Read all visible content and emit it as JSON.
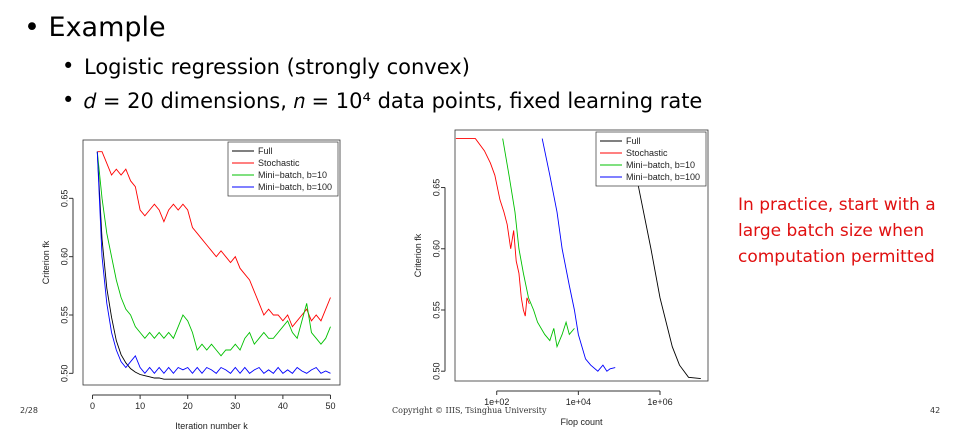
{
  "bullets": [
    "Example",
    "Logistic regression (strongly convex)",
    "𝑑 = 20 dimensions, 𝑛 = 10⁴ data points, fixed learning rate"
  ],
  "note": [
    "In practice, start with a",
    "large batch size when",
    "computation permitted"
  ],
  "footer": {
    "left": "2/28",
    "center": "Copyright © IIIS, Tsinghua University",
    "right": "42"
  },
  "chart_data": [
    {
      "type": "line",
      "xlabel": "Iteration number k",
      "ylabel": "Criterion fk",
      "x": [
        1,
        2,
        3,
        4,
        5,
        6,
        7,
        8,
        9,
        10,
        11,
        12,
        13,
        14,
        15,
        16,
        17,
        18,
        19,
        20,
        21,
        22,
        23,
        24,
        25,
        26,
        27,
        28,
        29,
        30,
        31,
        32,
        33,
        34,
        35,
        36,
        37,
        38,
        39,
        40,
        41,
        42,
        43,
        44,
        45,
        46,
        47,
        48,
        49,
        50
      ],
      "xlim": [
        -2,
        52
      ],
      "ylim": [
        0.49,
        0.7
      ],
      "xticks": [
        0,
        10,
        20,
        30,
        40,
        50
      ],
      "yticks": [
        {
          "value": 0.5,
          "label": "0.50"
        },
        0.55,
        {
          "value": 0.6,
          "label": "0.60"
        },
        0.65
      ],
      "legend": "topright",
      "series": [
        {
          "name": "Full",
          "color": "#000000",
          "values": [
            0.69,
            0.615,
            0.573,
            0.548,
            0.528,
            0.516,
            0.509,
            0.504,
            0.501,
            0.499,
            0.498,
            0.497,
            0.496,
            0.496,
            0.495,
            0.495,
            0.495,
            0.495,
            0.495,
            0.495,
            0.495,
            0.495,
            0.495,
            0.495,
            0.495,
            0.495,
            0.495,
            0.495,
            0.495,
            0.495,
            0.495,
            0.495,
            0.495,
            0.495,
            0.495,
            0.495,
            0.495,
            0.495,
            0.495,
            0.495,
            0.495,
            0.495,
            0.495,
            0.495,
            0.495,
            0.495,
            0.495,
            0.495,
            0.495,
            0.495
          ]
        },
        {
          "name": "Stochastic",
          "color": "#ff0000",
          "values": [
            0.69,
            0.69,
            0.68,
            0.67,
            0.675,
            0.67,
            0.675,
            0.665,
            0.66,
            0.64,
            0.635,
            0.64,
            0.645,
            0.64,
            0.63,
            0.64,
            0.645,
            0.64,
            0.645,
            0.64,
            0.625,
            0.62,
            0.615,
            0.61,
            0.605,
            0.6,
            0.605,
            0.6,
            0.595,
            0.6,
            0.59,
            0.585,
            0.58,
            0.57,
            0.56,
            0.55,
            0.555,
            0.55,
            0.55,
            0.545,
            0.55,
            0.54,
            0.545,
            0.55,
            0.555,
            0.545,
            0.55,
            0.545,
            0.555,
            0.565
          ]
        },
        {
          "name": "Mini−batch, b=10",
          "color": "#00c000",
          "values": [
            0.69,
            0.65,
            0.62,
            0.6,
            0.58,
            0.565,
            0.555,
            0.55,
            0.54,
            0.535,
            0.53,
            0.535,
            0.53,
            0.535,
            0.53,
            0.535,
            0.53,
            0.54,
            0.55,
            0.545,
            0.535,
            0.52,
            0.525,
            0.52,
            0.525,
            0.52,
            0.515,
            0.52,
            0.52,
            0.525,
            0.52,
            0.53,
            0.535,
            0.525,
            0.53,
            0.535,
            0.53,
            0.53,
            0.535,
            0.54,
            0.545,
            0.535,
            0.53,
            0.545,
            0.56,
            0.535,
            0.53,
            0.525,
            0.53,
            0.54
          ]
        },
        {
          "name": "Mini−batch, b=100",
          "color": "#0000ff",
          "values": [
            0.69,
            0.6,
            0.56,
            0.535,
            0.52,
            0.51,
            0.505,
            0.51,
            0.515,
            0.505,
            0.5,
            0.505,
            0.5,
            0.505,
            0.5,
            0.505,
            0.5,
            0.505,
            0.503,
            0.505,
            0.5,
            0.505,
            0.5,
            0.505,
            0.503,
            0.5,
            0.505,
            0.503,
            0.5,
            0.505,
            0.5,
            0.505,
            0.5,
            0.503,
            0.505,
            0.5,
            0.503,
            0.5,
            0.505,
            0.5,
            0.503,
            0.5,
            0.505,
            0.502,
            0.5,
            0.503,
            0.505,
            0.5,
            0.502,
            0.5
          ]
        }
      ]
    },
    {
      "type": "line",
      "xlabel": "Flop count",
      "ylabel": "Criterion fk",
      "xscale": "log",
      "xlim": [
        9.5,
        15000000
      ],
      "ylim": [
        0.492,
        0.697
      ],
      "xticks": [
        {
          "value": 100,
          "label": "1e+02"
        },
        {
          "value": 10000,
          "label": "1e+04"
        },
        {
          "value": 1000000,
          "label": "1e+06"
        }
      ],
      "yticks": [
        {
          "value": 0.5,
          "label": "0.50"
        },
        0.55,
        {
          "value": 0.6,
          "label": "0.60"
        },
        0.65
      ],
      "legend": "topright",
      "series": [
        {
          "name": "Full",
          "color": "#000000",
          "x": [
            160000,
            300000,
            600000,
            1000000,
            2000000,
            3000000,
            5000000,
            10000000
          ],
          "values": [
            0.69,
            0.65,
            0.6,
            0.56,
            0.52,
            0.505,
            0.495,
            0.494
          ]
        },
        {
          "name": "Stochastic",
          "color": "#ff0000",
          "x": [
            10,
            30,
            50,
            70,
            90,
            120,
            150,
            180,
            220,
            260,
            300,
            350,
            400,
            450,
            500,
            550,
            630
          ],
          "values": [
            0.69,
            0.69,
            0.68,
            0.67,
            0.66,
            0.64,
            0.63,
            0.62,
            0.6,
            0.615,
            0.59,
            0.58,
            0.56,
            0.55,
            0.545,
            0.56,
            0.555
          ]
        },
        {
          "name": "Mini−batch, b=10",
          "color": "#00c000",
          "x": [
            140,
            200,
            280,
            350,
            450,
            600,
            800,
            1000,
            1500,
            2000,
            2500,
            3000,
            4000,
            5000,
            6000,
            8000
          ],
          "values": [
            0.69,
            0.66,
            0.63,
            0.6,
            0.58,
            0.56,
            0.55,
            0.54,
            0.53,
            0.525,
            0.535,
            0.52,
            0.53,
            0.54,
            0.53,
            0.535
          ]
        },
        {
          "name": "Mini−batch, b=100",
          "color": "#0000ff",
          "x": [
            1300,
            2000,
            3000,
            4000,
            6000,
            8000,
            10000,
            15000,
            20000,
            30000,
            40000,
            50000,
            60000,
            80000
          ],
          "values": [
            0.69,
            0.66,
            0.63,
            0.6,
            0.57,
            0.55,
            0.53,
            0.51,
            0.505,
            0.5,
            0.505,
            0.5,
            0.502,
            0.503
          ]
        }
      ]
    }
  ]
}
